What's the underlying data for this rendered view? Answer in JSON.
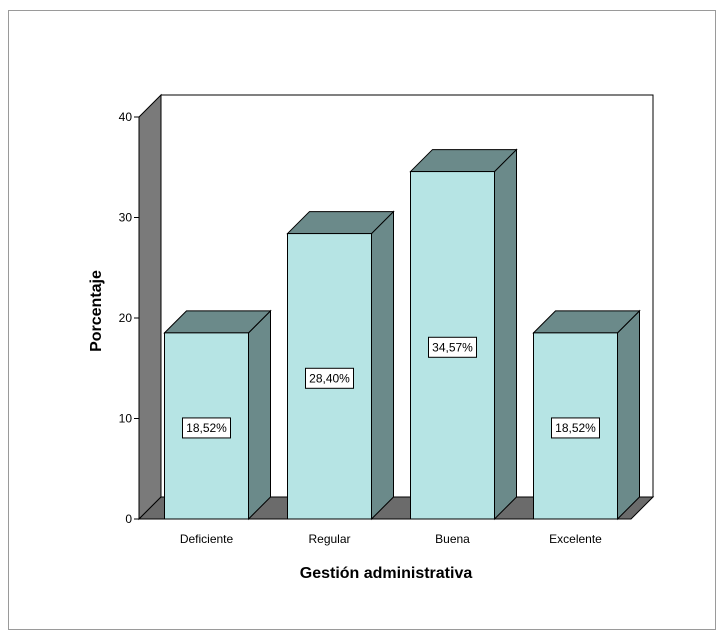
{
  "chart_data": {
    "type": "bar",
    "categories": [
      "Deficiente",
      "Regular",
      "Buena",
      "Excelente"
    ],
    "values": [
      18.52,
      28.4,
      34.57,
      18.52
    ],
    "data_labels": [
      "18,52%",
      "28,40%",
      "34,57%",
      "18,52%"
    ],
    "xlabel": "Gestión administrativa",
    "ylabel": "Porcentaje",
    "ylim": [
      0,
      40
    ],
    "yticks": [
      "0",
      "10",
      "20",
      "30",
      "40"
    ],
    "grid": false,
    "style": "3d",
    "colors": {
      "bar_front": "#b6e4e4",
      "bar_top": "#6b8a8a",
      "bar_side": "#6b8a8a",
      "back_wall": "#ffffff",
      "side_wall": "#7a7a7a",
      "floor": "#6b6b6b",
      "label_box": "#ffffff"
    }
  }
}
